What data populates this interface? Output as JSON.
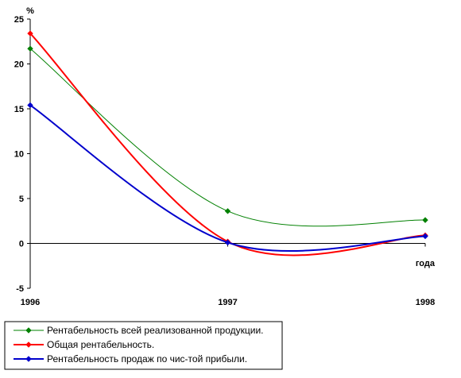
{
  "chart_data": {
    "type": "line",
    "ylabel": "%",
    "xlabel": "года",
    "categories": [
      "1996",
      "1997",
      "1998"
    ],
    "ylim": [
      -5,
      25
    ],
    "yticks": [
      -5,
      0,
      5,
      10,
      15,
      20,
      25
    ],
    "grid": false,
    "legend": "bottom-left",
    "series": [
      {
        "name": "Рентабельность всей реализованной продукции.",
        "color": "#008000",
        "values": [
          21.7,
          3.6,
          2.6
        ],
        "marker": "diamond"
      },
      {
        "name": "Общая рентабельность.",
        "color": "#ff0000",
        "values": [
          23.4,
          0.2,
          0.9
        ],
        "marker": "diamond"
      },
      {
        "name": "Рентабельность продаж по чис-той прибыли.",
        "color": "#0000cc",
        "values": [
          15.4,
          0.1,
          0.8
        ],
        "marker": "diamond"
      }
    ]
  }
}
